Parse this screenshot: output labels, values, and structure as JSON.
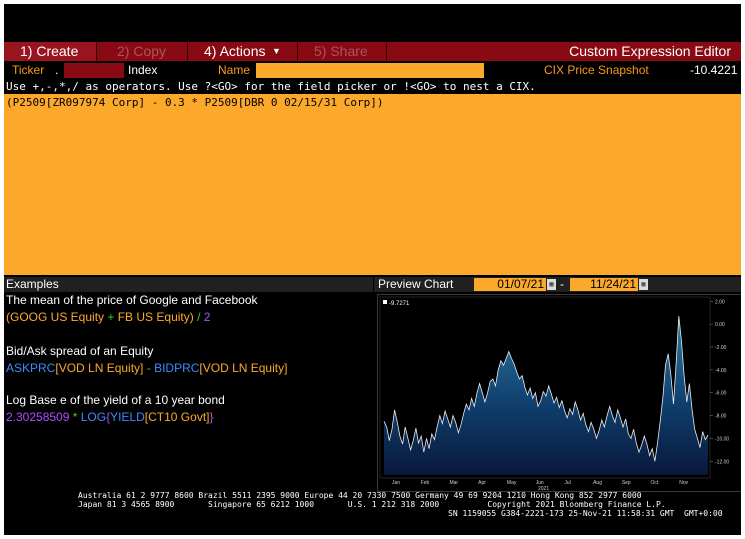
{
  "menu": {
    "create": "1) Create",
    "copy": "2) Copy",
    "actions": "4) Actions",
    "share": "5) Share",
    "title": "Custom Expression Editor"
  },
  "fields": {
    "ticker_label": "Ticker",
    "ticker_dot": ".",
    "index_label": "Index",
    "name_label": "Name",
    "snapshot_label": "CIX Price Snapshot",
    "snapshot_value": "-10.4221"
  },
  "instructions": "Use +,-,*,/ as operators. Use ?<GO> for the field picker or !<GO> to nest a CIX.",
  "expression": "(P2509[ZR097974 Corp] - 0.3 * P2509[DBR 0 02/15/31 Corp])",
  "examples": {
    "header": "Examples",
    "ex1_desc": "The mean of the price of Google and Facebook",
    "ex1_open": "(",
    "ex1_a": "GOOG US Equity",
    "ex1_op": " + ",
    "ex1_b": "FB US Equity",
    "ex1_close": ")",
    "ex1_div": " / ",
    "ex1_num": "2",
    "ex2_desc": "Bid/Ask spread of an Equity",
    "ex2_f1": "ASKPRC",
    "ex2_s1": "[VOD LN Equity]",
    "ex2_op": " - ",
    "ex2_f2": "BIDPRC",
    "ex2_s2": "[VOD LN Equity]",
    "ex3_desc": "Log Base e of the yield of a 10 year bond",
    "ex3_num": "2.30258509",
    "ex3_op": " * ",
    "ex3_f1": "LOG",
    "ex3_b1": "{",
    "ex3_f2": "YIELD",
    "ex3_s": "[CT10 Govt]",
    "ex3_b2": "}"
  },
  "preview": {
    "title": "Preview Chart",
    "start_date": "01/07/21",
    "dash": "-",
    "end_date": "11/24/21",
    "legend": "-9.7271"
  },
  "colors": {
    "menu_bg": "#8a0a14",
    "orange": "#fca92b",
    "label_orange": "#f59a1b",
    "blue": "#3d8bff",
    "purple": "#b04cff",
    "green": "#3ec92f"
  },
  "chart_data": {
    "type": "area",
    "title": "",
    "xlabel": "2021",
    "x_ticks": [
      "Jan",
      "Feb",
      "Mar",
      "Apr",
      "May",
      "Jun",
      "Jul",
      "Aug",
      "Sep",
      "Oct",
      "Nov"
    ],
    "y_ticks": [
      "2.00",
      "0.00",
      "-2.00",
      "-4.00",
      "-6.00",
      "-8.00",
      "-10.00",
      "-12.00"
    ],
    "ylim": [
      -13.2,
      2.2
    ],
    "legend": [
      "-9.7271"
    ],
    "grid": false,
    "series": [
      {
        "name": "-9.7271",
        "values": [
          -8.5,
          -9.0,
          -10.2,
          -9.2,
          -7.5,
          -8.6,
          -9.8,
          -10.5,
          -9.0,
          -10.0,
          -11.0,
          -10.2,
          -9.1,
          -10.4,
          -9.8,
          -11.2,
          -10.0,
          -10.9,
          -9.6,
          -10.1,
          -9.0,
          -8.0,
          -8.7,
          -7.6,
          -8.3,
          -9.0,
          -8.0,
          -8.6,
          -9.5,
          -8.8,
          -7.8,
          -7.0,
          -7.5,
          -6.5,
          -7.2,
          -6.0,
          -5.2,
          -6.0,
          -6.8,
          -6.0,
          -5.0,
          -4.8,
          -5.4,
          -4.0,
          -3.2,
          -3.6,
          -3.0,
          -2.4,
          -3.0,
          -3.5,
          -4.2,
          -4.8,
          -4.5,
          -5.5,
          -6.2,
          -5.6,
          -6.5,
          -6.0,
          -7.2,
          -6.7,
          -5.9,
          -6.3,
          -5.4,
          -6.1,
          -6.9,
          -6.4,
          -7.3,
          -6.7,
          -7.6,
          -8.2,
          -7.4,
          -7.9,
          -6.8,
          -7.5,
          -8.4,
          -7.8,
          -8.8,
          -9.4,
          -8.6,
          -9.2,
          -10.0,
          -9.3,
          -8.4,
          -9.0,
          -8.0,
          -7.2,
          -8.0,
          -8.6,
          -7.5,
          -8.2,
          -9.0,
          -8.3,
          -9.6,
          -10.0,
          -9.2,
          -10.4,
          -11.2,
          -10.6,
          -9.8,
          -10.5,
          -11.5,
          -10.9,
          -12.0,
          -10.4,
          -8.5,
          -6.4,
          -3.6,
          -2.6,
          -4.4,
          -7.0,
          -3.5,
          0.7,
          -1.4,
          -4.5,
          -6.8,
          -5.2,
          -7.5,
          -9.2,
          -10.0,
          -10.8,
          -9.4,
          -10.1,
          -9.7
        ]
      }
    ]
  },
  "footer": {
    "line1": "Australia 61 2 9777 8600 Brazil 5511 2395 9000 Europe 44 20 7330 7500 Germany 49 69 9204 1210 Hong Kong 852 2977 6000",
    "line2": "Japan 81 3 4565 8900       Singapore 65 6212 1000       U.S. 1 212 318 2000          Copyright 2021 Bloomberg Finance L.P.",
    "line3": "SN 1159055 G384-2221-173 25-Nov-21 11:58:31 GMT  GMT+0:00"
  }
}
